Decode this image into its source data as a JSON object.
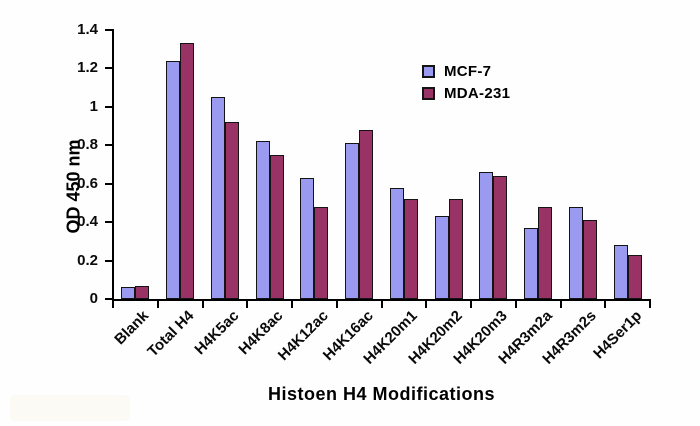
{
  "colors": {
    "mcf7_fill": "#9A9AF0",
    "mda231_fill": "#993366",
    "bar_border": "#141414",
    "axis": "#000000",
    "text": "#0a0a0a",
    "background": "#fefefe"
  },
  "chart_data": {
    "type": "bar",
    "title": "",
    "xlabel": "Histoen H4 Modifications",
    "ylabel": "OD 450 nm",
    "categories": [
      "Blank",
      "Total H4",
      "H4K5ac",
      "H4K8ac",
      "H4K12ac",
      "H4K16ac",
      "H4K20m1",
      "H4K20m2",
      "H4K20m3",
      "H4R3m2a",
      "H4R3m2s",
      "H4Ser1p"
    ],
    "series": [
      {
        "name": "MCF-7",
        "color": "#9A9AF0",
        "values": [
          0.06,
          1.24,
          1.05,
          0.82,
          0.63,
          0.81,
          0.58,
          0.43,
          0.66,
          0.37,
          0.48,
          0.28
        ]
      },
      {
        "name": "MDA-231",
        "color": "#993366",
        "values": [
          0.07,
          1.33,
          0.92,
          0.75,
          0.48,
          0.88,
          0.52,
          0.52,
          0.64,
          0.48,
          0.41,
          0.23
        ]
      }
    ],
    "ylim": [
      0,
      1.4
    ],
    "ytick_step": 0.2,
    "ytick_labels": [
      "0",
      "0.2",
      "0.4",
      "0.6",
      "0.8",
      "1",
      "1.2",
      "1.4"
    ],
    "legend_position": "upper-right-inside",
    "grid": false
  }
}
